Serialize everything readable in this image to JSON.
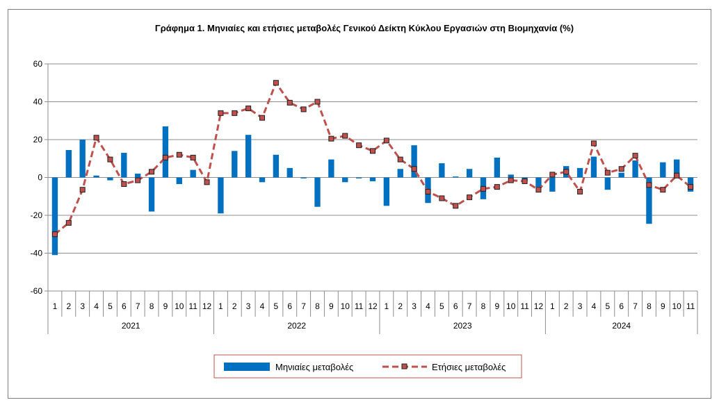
{
  "chart_data": {
    "type": "bar",
    "title": "Γράφημα 1. Μηνιαίες και ετήσιες μεταβολές  Γενικού Δείκτη Κύκλου Εργασιών στη Βιομηχανία (%)",
    "xlabel": "",
    "ylabel": "",
    "ylim": [
      -60,
      60
    ],
    "yticks": [
      -60,
      -40,
      -20,
      0,
      20,
      40,
      60
    ],
    "grid": true,
    "legend_position": "bottom",
    "categories": [
      "1",
      "2",
      "3",
      "4",
      "5",
      "6",
      "7",
      "8",
      "9",
      "10",
      "11",
      "12",
      "1",
      "2",
      "3",
      "4",
      "5",
      "6",
      "7",
      "8",
      "9",
      "10",
      "11",
      "12",
      "1",
      "2",
      "3",
      "4",
      "5",
      "6",
      "7",
      "8",
      "9",
      "10",
      "11",
      "12",
      "1",
      "2",
      "3",
      "4",
      "5",
      "6",
      "7",
      "8",
      "9",
      "10",
      "11"
    ],
    "years": [
      {
        "label": "2021",
        "count": 12
      },
      {
        "label": "2022",
        "count": 12
      },
      {
        "label": "2023",
        "count": 12
      },
      {
        "label": "2024",
        "count": 11
      }
    ],
    "series": [
      {
        "name": "Μηνιαίες μεταβολές",
        "kind": "bar",
        "color": "#0070c0",
        "values": [
          -41,
          14.5,
          20,
          1,
          -1.5,
          13,
          2,
          -18,
          27,
          -3.5,
          4,
          0,
          -19,
          14,
          22.5,
          -2.5,
          12,
          5,
          -0.5,
          -15.5,
          9.5,
          -2.5,
          -0.5,
          -2,
          -15,
          4.5,
          17,
          -13.5,
          7.5,
          0.5,
          4.5,
          -11.5,
          10.5,
          1.5,
          -2,
          -5,
          -7.5,
          6,
          5,
          11,
          -6.5,
          2.5,
          9,
          -24.5,
          8,
          9.5,
          -7.5
        ]
      },
      {
        "name": "Ετήσιες μεταβολές",
        "kind": "line",
        "color": "#c0504d",
        "marker_fill": "#c0504d",
        "marker_stroke": "#1f1f1f",
        "values": [
          -30,
          -24,
          -6.5,
          21,
          9.5,
          -3.5,
          -1.5,
          3,
          10.5,
          12,
          10.5,
          -2.5,
          34,
          34,
          36.5,
          31.5,
          50,
          39.5,
          36,
          40,
          20.5,
          22,
          17,
          14,
          19.5,
          9.5,
          4.5,
          -7.5,
          -11,
          -15,
          -10.5,
          -6,
          -5,
          -1.5,
          -2,
          -6.5,
          1.5,
          3,
          -7.5,
          18,
          2.5,
          4.5,
          11.5,
          -4,
          -6.5,
          1,
          -5
        ]
      }
    ]
  }
}
